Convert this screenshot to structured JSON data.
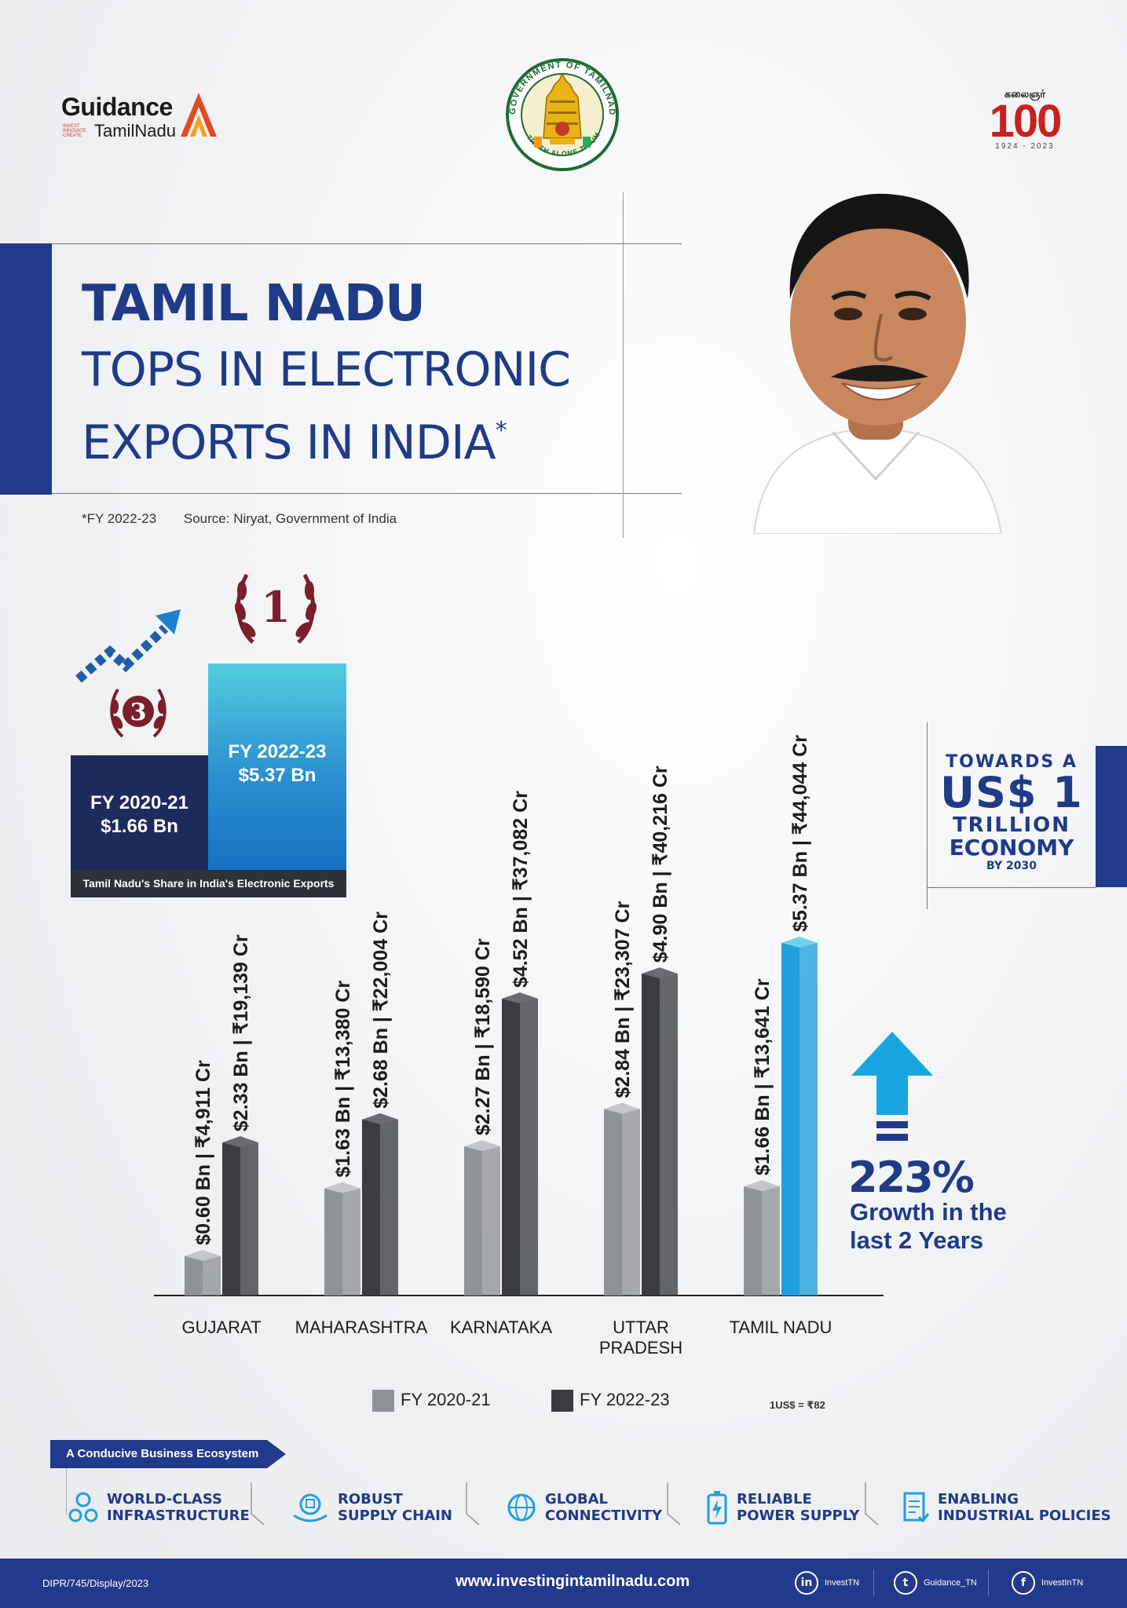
{
  "logos": {
    "guidance_word": "Guidance",
    "guidance_tn": "TamilNadu",
    "guidance_tag": "INVEST INNOVATE CREATE",
    "emblem_text_top": "GOVERNMENT OF TAMILNADU",
    "emblem_text_bottom": "TRUTH ALONE TRIUMPHS",
    "centenary_tamil": "கலைஞர்",
    "centenary_number": "100",
    "centenary_years": "1924 - 2023"
  },
  "headline": {
    "line1": "TAMIL NADU",
    "line2": "TOPS IN ELECTRONIC",
    "line3": "EXPORTS IN INDIA",
    "asterisk": "*",
    "footnote": "*FY 2022-23",
    "source": "Source: Niryat, Government of India"
  },
  "share": {
    "rank_old": "3",
    "rank_new": "1",
    "box_old_year": "FY 2020-21",
    "box_old_value": "$1.66 Bn",
    "box_new_year": "FY 2022-23",
    "box_new_value": "$5.37 Bn",
    "caption": "Tamil Nadu's Share in India's Electronic Exports"
  },
  "trillion": {
    "line1": "TOWARDS A",
    "line2": "US$ 1",
    "line3": "TRILLION",
    "line4": "ECONOMY",
    "line5": "BY 2030"
  },
  "growth": {
    "percent": "223%",
    "text": "Growth in the last 2 Years"
  },
  "chart_data": {
    "type": "bar",
    "categories": [
      "GUJARAT",
      "MAHARASHTRA",
      "KARNATAKA",
      "UTTAR PRADESH",
      "TAMIL NADU"
    ],
    "series": [
      {
        "name": "FY 2020-21",
        "values": [
          0.6,
          1.63,
          2.27,
          2.84,
          1.66
        ],
        "labels": [
          "$0.60 Bn | ₹4,911 Cr",
          "$1.63 Bn | ₹13,380 Cr",
          "$2.27 Bn | ₹18,590 Cr",
          "$2.84 Bn | ₹23,307 Cr",
          "$1.66 Bn | ₹13,641 Cr"
        ],
        "color": "#8f9296"
      },
      {
        "name": "FY 2022-23",
        "values": [
          2.33,
          2.68,
          4.52,
          4.9,
          5.37
        ],
        "labels": [
          "$2.33 Bn | ₹19,139 Cr",
          "$2.68 Bn | ₹22,004 Cr",
          "$4.52 Bn | ₹37,082 Cr",
          "$4.90 Bn | ₹40,216 Cr",
          "$5.37 Bn | ₹44,044 Cr"
        ],
        "color": "#3a3c40",
        "highlight_color": "#1f9fdc"
      }
    ],
    "category_label_lines": [
      [
        "GUJARAT"
      ],
      [
        "MAHARASHTRA"
      ],
      [
        "KARNATAKA"
      ],
      [
        "UTTAR",
        "PRADESH"
      ],
      [
        "TAMIL NADU"
      ]
    ],
    "ylim": [
      0,
      5.5
    ],
    "legend_placement": "bottom",
    "conversion_note": "1US$ = ₹82"
  },
  "ecosystem": {
    "tag": "A Conducive Business Ecosystem",
    "items": [
      {
        "l1": "WORLD-CLASS",
        "l2": "INFRASTRUCTURE"
      },
      {
        "l1": "ROBUST",
        "l2": "SUPPLY CHAIN"
      },
      {
        "l1": "GLOBAL",
        "l2": "CONNECTIVITY"
      },
      {
        "l1": "RELIABLE",
        "l2": "POWER SUPPLY"
      },
      {
        "l1": "ENABLING",
        "l2": "INDUSTRIAL POLICIES"
      }
    ]
  },
  "footer": {
    "code": "DIPR/745/Display/2023",
    "url": "www.investingintamilnadu.com",
    "linkedin": "InvestTN",
    "twitter": "Guidance_TN",
    "facebook": "InvestInTN",
    "linkedin_glyph": "in",
    "twitter_glyph": "t",
    "facebook_glyph": "f"
  },
  "colors": {
    "navy": "#223a8c",
    "title": "#1f3b87",
    "bar_old": "#8f9296",
    "bar_new": "#3a3c40",
    "bar_tn": "#1f9fdc",
    "rank_badge": "#7a1f2b"
  }
}
